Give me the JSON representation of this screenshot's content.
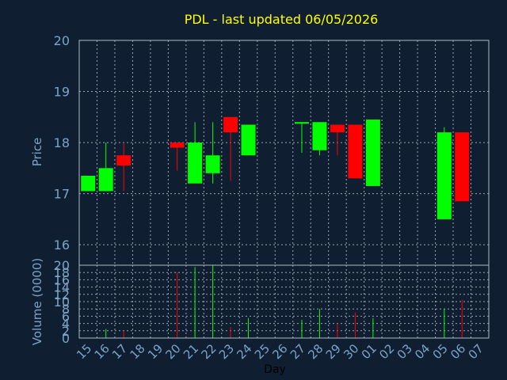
{
  "title": "PDL - last updated 06/05/2026",
  "colors": {
    "background": "#0f1f31",
    "title": "#ffff00",
    "axis_text": "#7aa4c8",
    "xlabel_text": "#000000",
    "frame": "#aeb8c6",
    "grid": "#9aa6b4",
    "up": "#00ff00",
    "down": "#ff0000"
  },
  "chart_data": [
    {
      "type": "candlestick",
      "ylabel": "Price",
      "ylim": [
        15.6,
        20
      ],
      "yticks": [
        16,
        17,
        18,
        19,
        20
      ],
      "grid": true,
      "x_categories": [
        "15",
        "16",
        "17",
        "18",
        "19",
        "20",
        "21",
        "22",
        "23",
        "24",
        "25",
        "26",
        "27",
        "28",
        "29",
        "30",
        "01",
        "02",
        "03",
        "04",
        "05",
        "06",
        "07"
      ],
      "candles": [
        {
          "day": "15",
          "open": 17.05,
          "high": 17.35,
          "low": 17.05,
          "close": 17.35
        },
        {
          "day": "16",
          "open": 17.05,
          "high": 18.0,
          "low": 17.05,
          "close": 17.5
        },
        {
          "day": "17",
          "open": 17.75,
          "high": 18.0,
          "low": 17.05,
          "close": 17.55
        },
        {
          "day": "20",
          "open": 18.0,
          "high": 18.0,
          "low": 17.45,
          "close": 17.9
        },
        {
          "day": "21",
          "open": 17.2,
          "high": 18.4,
          "low": 17.2,
          "close": 18.0
        },
        {
          "day": "22",
          "open": 17.4,
          "high": 18.4,
          "low": 17.2,
          "close": 17.75
        },
        {
          "day": "23",
          "open": 18.5,
          "high": 18.5,
          "low": 17.25,
          "close": 18.2
        },
        {
          "day": "24",
          "open": 17.75,
          "high": 18.35,
          "low": 17.75,
          "close": 18.35
        },
        {
          "day": "27",
          "open": 18.37,
          "high": 18.4,
          "low": 17.8,
          "close": 18.4
        },
        {
          "day": "28",
          "open": 17.85,
          "high": 18.4,
          "low": 17.75,
          "close": 18.4
        },
        {
          "day": "29",
          "open": 18.35,
          "high": 18.35,
          "low": 17.75,
          "close": 18.2
        },
        {
          "day": "30",
          "open": 18.35,
          "high": 18.35,
          "low": 17.3,
          "close": 17.3
        },
        {
          "day": "01",
          "open": 17.15,
          "high": 18.45,
          "low": 17.15,
          "close": 18.45
        },
        {
          "day": "05",
          "open": 16.5,
          "high": 18.3,
          "low": 16.5,
          "close": 18.2
        },
        {
          "day": "06",
          "open": 18.2,
          "high": 18.2,
          "low": 16.85,
          "close": 16.85
        }
      ]
    },
    {
      "type": "bar",
      "ylabel": "Volume (0000)",
      "xlabel": "Day",
      "ylim": [
        0,
        20
      ],
      "yticks": [
        0,
        2,
        4,
        6,
        8,
        10,
        12,
        14,
        16,
        18,
        20
      ],
      "grid": true,
      "categories": [
        "15",
        "16",
        "17",
        "18",
        "19",
        "20",
        "21",
        "22",
        "23",
        "24",
        "25",
        "26",
        "27",
        "28",
        "29",
        "30",
        "01",
        "02",
        "03",
        "04",
        "05",
        "06",
        "07"
      ],
      "bars": [
        {
          "day": "16",
          "value": 2.5,
          "direction": "up"
        },
        {
          "day": "17",
          "value": 2.0,
          "direction": "down"
        },
        {
          "day": "20",
          "value": 18.0,
          "direction": "down"
        },
        {
          "day": "21",
          "value": 19.5,
          "direction": "up"
        },
        {
          "day": "22",
          "value": 20.0,
          "direction": "up"
        },
        {
          "day": "23",
          "value": 3.0,
          "direction": "down"
        },
        {
          "day": "24",
          "value": 5.5,
          "direction": "up"
        },
        {
          "day": "27",
          "value": 5.0,
          "direction": "up"
        },
        {
          "day": "28",
          "value": 8.0,
          "direction": "up"
        },
        {
          "day": "29",
          "value": 4.0,
          "direction": "down"
        },
        {
          "day": "30",
          "value": 7.0,
          "direction": "down"
        },
        {
          "day": "01",
          "value": 5.5,
          "direction": "up"
        },
        {
          "day": "05",
          "value": 8.0,
          "direction": "up"
        },
        {
          "day": "06",
          "value": 10.5,
          "direction": "down"
        }
      ]
    }
  ]
}
